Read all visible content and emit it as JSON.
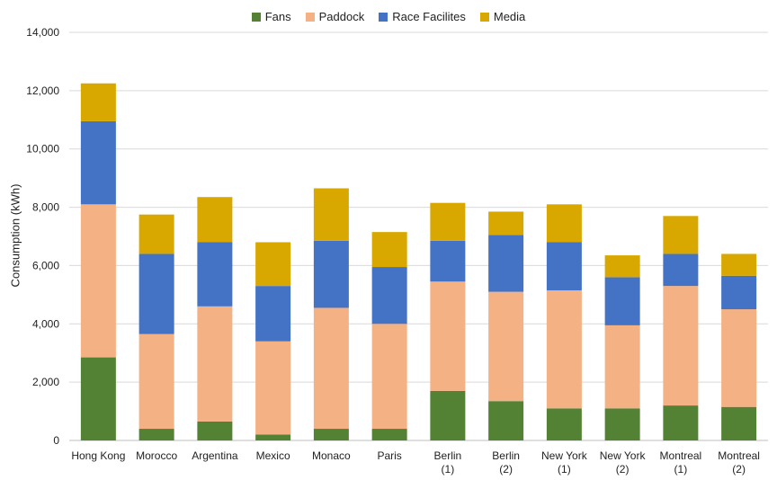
{
  "chart_data": {
    "type": "bar",
    "stacked": true,
    "title": "",
    "xlabel": "",
    "ylabel": "Consumption (kWh)",
    "ylim": [
      0,
      14000
    ],
    "yticks": [
      "0",
      "2,000",
      "4,000",
      "6,000",
      "8,000",
      "10,000",
      "12,000",
      "14,000"
    ],
    "ytick_values": [
      0,
      2000,
      4000,
      6000,
      8000,
      10000,
      12000,
      14000
    ],
    "grid": true,
    "legend_position": "top",
    "categories": [
      [
        "Hong Kong"
      ],
      [
        "Morocco"
      ],
      [
        "Argentina"
      ],
      [
        "Mexico"
      ],
      [
        "Monaco"
      ],
      [
        "Paris"
      ],
      [
        "Berlin",
        "(1)"
      ],
      [
        "Berlin",
        "(2)"
      ],
      [
        "New York",
        "(1)"
      ],
      [
        "New York",
        "(2)"
      ],
      [
        "Montreal",
        "(1)"
      ],
      [
        "Montreal",
        "(2)"
      ]
    ],
    "series": [
      {
        "name": "Fans",
        "color": "#548235",
        "values": [
          2850,
          400,
          650,
          200,
          400,
          400,
          1700,
          1350,
          1100,
          1100,
          1200,
          1150
        ]
      },
      {
        "name": "Paddock",
        "color": "#F4B183",
        "values": [
          5250,
          3250,
          3950,
          3200,
          4150,
          3600,
          3750,
          3750,
          4050,
          2850,
          4100,
          3350
        ]
      },
      {
        "name": "Race Facilites",
        "color": "#4472C4",
        "values": [
          2850,
          2750,
          2200,
          1900,
          2300,
          1950,
          1400,
          1950,
          1650,
          1650,
          1100,
          1150
        ]
      },
      {
        "name": "Media",
        "color": "#D8A800",
        "values": [
          1300,
          1350,
          1550,
          1500,
          1800,
          1200,
          1300,
          800,
          1300,
          750,
          1300,
          750
        ]
      }
    ]
  }
}
